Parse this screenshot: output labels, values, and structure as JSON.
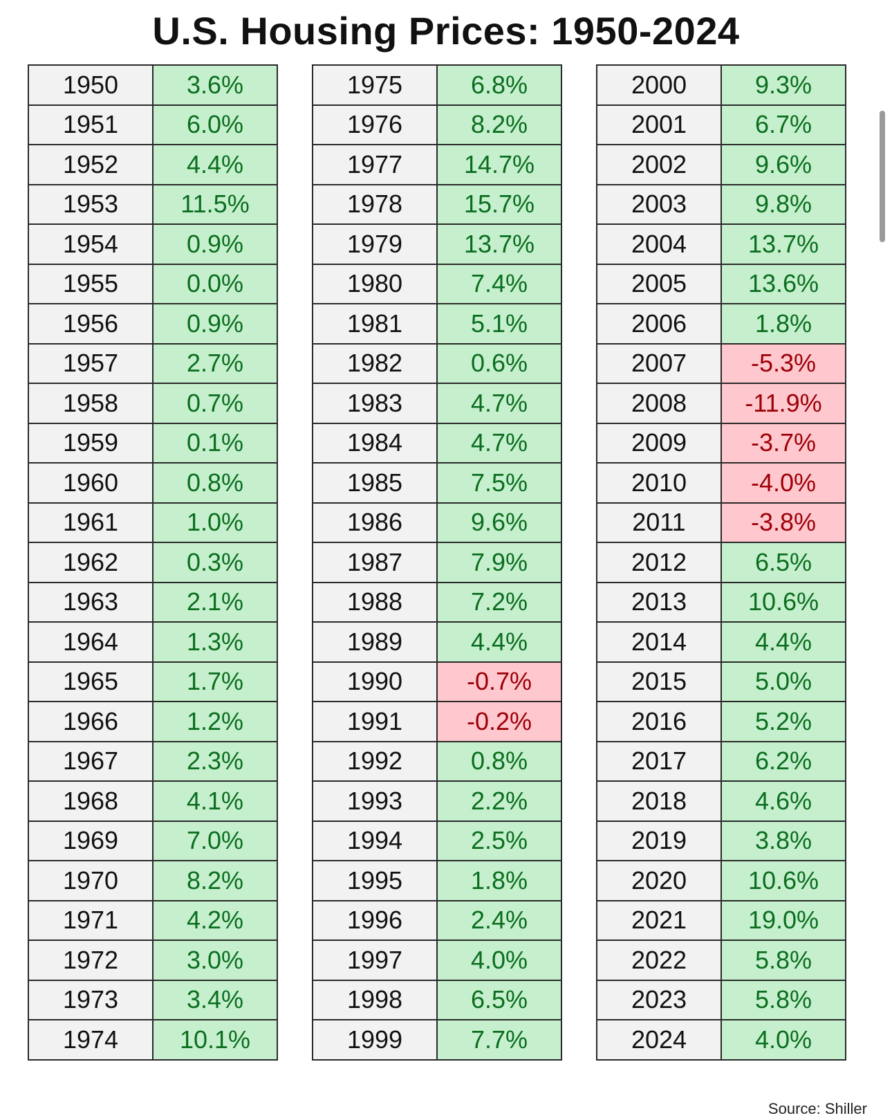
{
  "title": "U.S. Housing Prices: 1950-2024",
  "source": "Source: Shiller",
  "colors": {
    "positive_fill": "#c6efce",
    "positive_text": "#0a6e1e",
    "negative_fill": "#ffc7ce",
    "negative_text": "#9c0006",
    "year_fill": "#f2f2f2"
  },
  "chart_data": {
    "type": "table",
    "title": "U.S. Housing Prices: 1950-2024",
    "columns": [
      {
        "rows": [
          [
            "1950",
            "3.6%"
          ],
          [
            "1951",
            "6.0%"
          ],
          [
            "1952",
            "4.4%"
          ],
          [
            "1953",
            "11.5%"
          ],
          [
            "1954",
            "0.9%"
          ],
          [
            "1955",
            "0.0%"
          ],
          [
            "1956",
            "0.9%"
          ],
          [
            "1957",
            "2.7%"
          ],
          [
            "1958",
            "0.7%"
          ],
          [
            "1959",
            "0.1%"
          ],
          [
            "1960",
            "0.8%"
          ],
          [
            "1961",
            "1.0%"
          ],
          [
            "1962",
            "0.3%"
          ],
          [
            "1963",
            "2.1%"
          ],
          [
            "1964",
            "1.3%"
          ],
          [
            "1965",
            "1.7%"
          ],
          [
            "1966",
            "1.2%"
          ],
          [
            "1967",
            "2.3%"
          ],
          [
            "1968",
            "4.1%"
          ],
          [
            "1969",
            "7.0%"
          ],
          [
            "1970",
            "8.2%"
          ],
          [
            "1971",
            "4.2%"
          ],
          [
            "1972",
            "3.0%"
          ],
          [
            "1973",
            "3.4%"
          ],
          [
            "1974",
            "10.1%"
          ]
        ]
      },
      {
        "rows": [
          [
            "1975",
            "6.8%"
          ],
          [
            "1976",
            "8.2%"
          ],
          [
            "1977",
            "14.7%"
          ],
          [
            "1978",
            "15.7%"
          ],
          [
            "1979",
            "13.7%"
          ],
          [
            "1980",
            "7.4%"
          ],
          [
            "1981",
            "5.1%"
          ],
          [
            "1982",
            "0.6%"
          ],
          [
            "1983",
            "4.7%"
          ],
          [
            "1984",
            "4.7%"
          ],
          [
            "1985",
            "7.5%"
          ],
          [
            "1986",
            "9.6%"
          ],
          [
            "1987",
            "7.9%"
          ],
          [
            "1988",
            "7.2%"
          ],
          [
            "1989",
            "4.4%"
          ],
          [
            "1990",
            "-0.7%"
          ],
          [
            "1991",
            "-0.2%"
          ],
          [
            "1992",
            "0.8%"
          ],
          [
            "1993",
            "2.2%"
          ],
          [
            "1994",
            "2.5%"
          ],
          [
            "1995",
            "1.8%"
          ],
          [
            "1996",
            "2.4%"
          ],
          [
            "1997",
            "4.0%"
          ],
          [
            "1998",
            "6.5%"
          ],
          [
            "1999",
            "7.7%"
          ]
        ]
      },
      {
        "rows": [
          [
            "2000",
            "9.3%"
          ],
          [
            "2001",
            "6.7%"
          ],
          [
            "2002",
            "9.6%"
          ],
          [
            "2003",
            "9.8%"
          ],
          [
            "2004",
            "13.7%"
          ],
          [
            "2005",
            "13.6%"
          ],
          [
            "2006",
            "1.8%"
          ],
          [
            "2007",
            "-5.3%"
          ],
          [
            "2008",
            "-11.9%"
          ],
          [
            "2009",
            "-3.7%"
          ],
          [
            "2010",
            "-4.0%"
          ],
          [
            "2011",
            "-3.8%"
          ],
          [
            "2012",
            "6.5%"
          ],
          [
            "2013",
            "10.6%"
          ],
          [
            "2014",
            "4.4%"
          ],
          [
            "2015",
            "5.0%"
          ],
          [
            "2016",
            "5.2%"
          ],
          [
            "2017",
            "6.2%"
          ],
          [
            "2018",
            "4.6%"
          ],
          [
            "2019",
            "3.8%"
          ],
          [
            "2020",
            "10.6%"
          ],
          [
            "2021",
            "19.0%"
          ],
          [
            "2022",
            "5.8%"
          ],
          [
            "2023",
            "5.8%"
          ],
          [
            "2024",
            "4.0%"
          ]
        ]
      }
    ]
  }
}
